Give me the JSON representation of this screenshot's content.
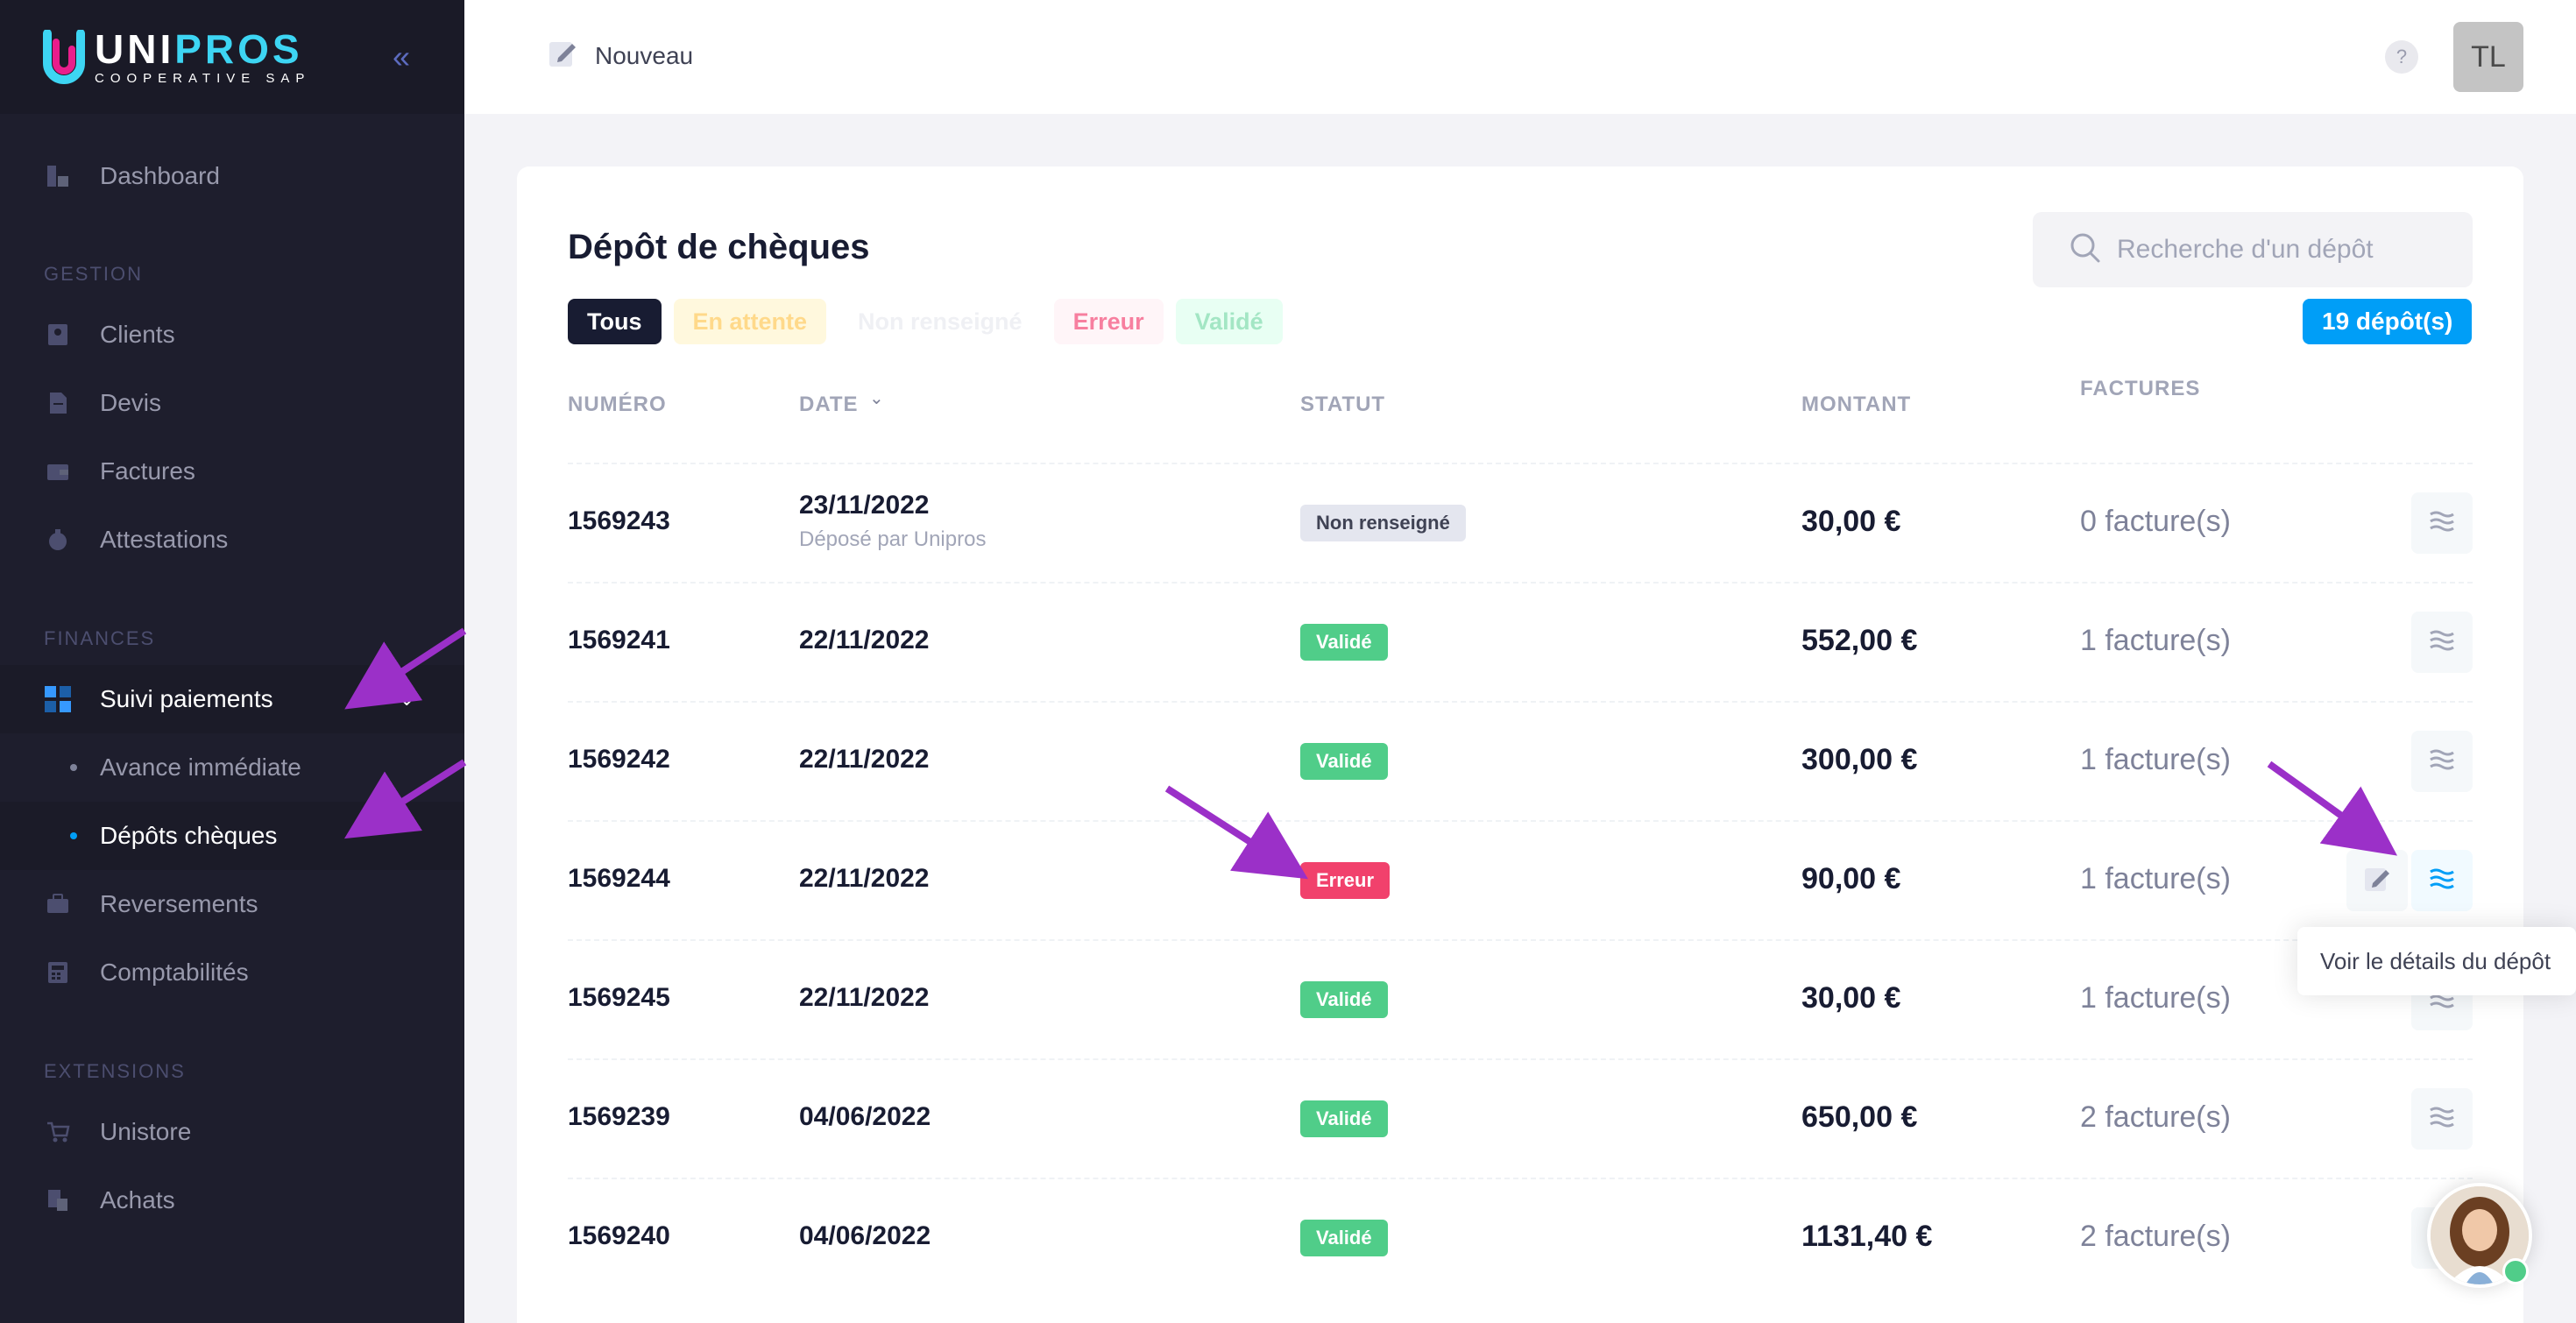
{
  "brand": {
    "name_a": "UNI",
    "name_b": "PROS",
    "subtitle": "COOPERATIVE SAP"
  },
  "sidebar": {
    "dashboard": "Dashboard",
    "section_gestion": "GESTION",
    "clients": "Clients",
    "devis": "Devis",
    "factures": "Factures",
    "attestations": "Attestations",
    "section_finances": "FINANCES",
    "suivi_paiements": "Suivi paiements",
    "avance_immediate": "Avance immédiate",
    "depots_cheques": "Dépôts chèques",
    "reversements": "Reversements",
    "comptabilites": "Comptabilités",
    "section_extensions": "EXTENSIONS",
    "unistore": "Unistore",
    "achats": "Achats"
  },
  "header": {
    "new_label": "Nouveau",
    "help": "?",
    "user_initials": "TL"
  },
  "page": {
    "title": "Dépôt de chèques",
    "search_placeholder": "Recherche d'un dépôt",
    "count_badge": "19 dépôt(s)",
    "filters": [
      "Tous",
      "En attente",
      "Non renseigné",
      "Erreur",
      "Validé"
    ]
  },
  "table": {
    "headers": {
      "numero": "NUMÉRO",
      "date": "DATE",
      "statut": "STATUT",
      "montant": "MONTANT",
      "factures": "FACTURES"
    },
    "rows": [
      {
        "numero": "1569243",
        "date": "23/11/2022",
        "sub": "Déposé par Unipros",
        "statut": "Non renseigné",
        "montant": "30,00 €",
        "factures": "0 facture(s)"
      },
      {
        "numero": "1569241",
        "date": "22/11/2022",
        "sub": "",
        "statut": "Validé",
        "montant": "552,00 €",
        "factures": "1 facture(s)"
      },
      {
        "numero": "1569242",
        "date": "22/11/2022",
        "sub": "",
        "statut": "Validé",
        "montant": "300,00 €",
        "factures": "1 facture(s)"
      },
      {
        "numero": "1569244",
        "date": "22/11/2022",
        "sub": "",
        "statut": "Erreur",
        "montant": "90,00 €",
        "factures": "1 facture(s)"
      },
      {
        "numero": "1569245",
        "date": "22/11/2022",
        "sub": "",
        "statut": "Validé",
        "montant": "30,00 €",
        "factures": "1 facture(s)"
      },
      {
        "numero": "1569239",
        "date": "04/06/2022",
        "sub": "",
        "statut": "Validé",
        "montant": "650,00 €",
        "factures": "2 facture(s)"
      },
      {
        "numero": "1569240",
        "date": "04/06/2022",
        "sub": "",
        "statut": "Validé",
        "montant": "1131,40 €",
        "factures": "2 facture(s)"
      }
    ]
  },
  "tooltip": "Voir le détails du dépôt",
  "colors": {
    "sidebar_bg": "#1e1e2d",
    "accent": "#009ef7",
    "success": "#50cd89",
    "danger": "#f1416c",
    "annotation_arrow": "#9b30c8"
  },
  "icons": [
    "collapse-icon",
    "dashboard-icon",
    "clients-icon",
    "devis-icon",
    "factures-icon",
    "attestations-icon",
    "suivi-paiements-icon",
    "reversements-icon",
    "comptabilites-icon",
    "unistore-icon",
    "achats-icon",
    "edit-icon",
    "search-icon",
    "details-icon",
    "sort-chevron-icon"
  ]
}
